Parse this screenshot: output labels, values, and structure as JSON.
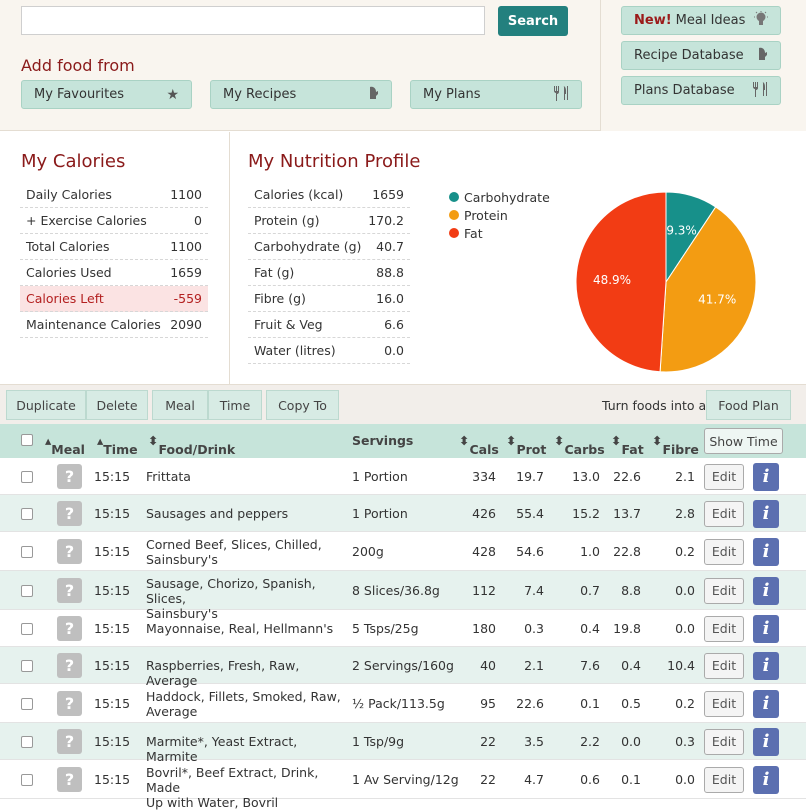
{
  "search": {
    "placeholder": "",
    "button": "Search"
  },
  "add_food": {
    "label": "Add food from",
    "buttons": [
      "My Favourites",
      "My Recipes",
      "My Plans"
    ]
  },
  "side_buttons": {
    "meal_ideas_new": "New!",
    "meal_ideas": "Meal Ideas",
    "recipe_db": "Recipe Database",
    "plans_db": "Plans Database"
  },
  "calories": {
    "title": "My Calories",
    "rows": [
      {
        "label": "Daily Calories",
        "value": "1100"
      },
      {
        "label": "+ Exercise Calories",
        "value": "0"
      },
      {
        "label": "Total Calories",
        "value": "1100"
      },
      {
        "label": "Calories Used",
        "value": "1659"
      },
      {
        "label": "Calories Left",
        "value": "-559"
      },
      {
        "label": "Maintenance Calories",
        "value": "2090"
      }
    ]
  },
  "nutrition": {
    "title": "My Nutrition Profile",
    "rows": [
      {
        "label": "Calories (kcal)",
        "value": "1659"
      },
      {
        "label": "Protein (g)",
        "value": "170.2"
      },
      {
        "label": "Carbohydrate (g)",
        "value": "40.7"
      },
      {
        "label": "Fat (g)",
        "value": "88.8"
      },
      {
        "label": "Fibre (g)",
        "value": "16.0"
      },
      {
        "label": "Fruit & Veg",
        "value": "6.6"
      },
      {
        "label": "Water (litres)",
        "value": "0.0"
      }
    ]
  },
  "chart_data": {
    "type": "pie",
    "series": [
      {
        "name": "Carbohydrate",
        "value": 9.3,
        "label": "9.3%",
        "color": "#17908a"
      },
      {
        "name": "Protein",
        "value": 41.7,
        "label": "41.7%",
        "color": "#f39c12"
      },
      {
        "name": "Fat",
        "value": 48.9,
        "label": "48.9%",
        "color": "#f23c14"
      }
    ]
  },
  "toolbar": {
    "duplicate": "Duplicate",
    "delete": "Delete",
    "meal": "Meal",
    "time": "Time",
    "copy_to": "Copy To",
    "turn_into": "Turn foods into a",
    "food_plan": "Food Plan"
  },
  "table": {
    "headers": {
      "meal": "Meal",
      "time": "Time",
      "food": "Food/Drink",
      "servings": "Servings",
      "cals": "Cals",
      "prot": "Prot",
      "carbs": "Carbs",
      "fat": "Fat",
      "fibre": "Fibre",
      "show_time": "Show Time"
    },
    "edit_label": "Edit",
    "rows": [
      {
        "time": "15:15",
        "food": [
          "Frittata"
        ],
        "servings": "1 Portion",
        "cals": "334",
        "prot": "19.7",
        "carbs": "13.0",
        "fat": "22.6",
        "fibre": "2.1"
      },
      {
        "time": "15:15",
        "food": [
          "Sausages and peppers"
        ],
        "servings": "1 Portion",
        "cals": "426",
        "prot": "55.4",
        "carbs": "15.2",
        "fat": "13.7",
        "fibre": "2.8"
      },
      {
        "time": "15:15",
        "food": [
          "Corned Beef, Slices, Chilled,",
          "Sainsbury's"
        ],
        "servings": "200g",
        "cals": "428",
        "prot": "54.6",
        "carbs": "1.0",
        "fat": "22.8",
        "fibre": "0.2"
      },
      {
        "time": "15:15",
        "food": [
          "Sausage, Chorizo, Spanish, Slices,",
          "Sainsbury's"
        ],
        "servings": "8 Slices/36.8g",
        "cals": "112",
        "prot": "7.4",
        "carbs": "0.7",
        "fat": "8.8",
        "fibre": "0.0"
      },
      {
        "time": "15:15",
        "food": [
          "Mayonnaise, Real, Hellmann's"
        ],
        "servings": "5 Tsps/25g",
        "cals": "180",
        "prot": "0.3",
        "carbs": "0.4",
        "fat": "19.8",
        "fibre": "0.0"
      },
      {
        "time": "15:15",
        "food": [
          "Raspberries, Fresh, Raw, Average"
        ],
        "servings": "2 Servings/160g",
        "cals": "40",
        "prot": "2.1",
        "carbs": "7.6",
        "fat": "0.4",
        "fibre": "10.4"
      },
      {
        "time": "15:15",
        "food": [
          "Haddock, Fillets, Smoked, Raw,",
          "Average"
        ],
        "servings": "½ Pack/113.5g",
        "cals": "95",
        "prot": "22.6",
        "carbs": "0.1",
        "fat": "0.5",
        "fibre": "0.2"
      },
      {
        "time": "15:15",
        "food": [
          "Marmite*, Yeast Extract, Marmite"
        ],
        "servings": "1 Tsp/9g",
        "cals": "22",
        "prot": "3.5",
        "carbs": "2.2",
        "fat": "0.0",
        "fibre": "0.3"
      },
      {
        "time": "15:15",
        "food": [
          "Bovril*, Beef Extract, Drink, Made",
          "Up with Water, Bovril"
        ],
        "servings": "1 Av Serving/12g",
        "cals": "22",
        "prot": "4.7",
        "carbs": "0.6",
        "fat": "0.1",
        "fibre": "0.0"
      }
    ]
  }
}
